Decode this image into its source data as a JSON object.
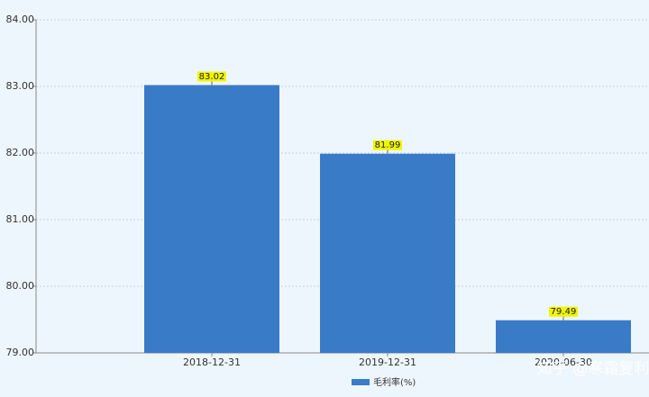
{
  "chart_data": {
    "type": "bar",
    "categories": [
      "2018-12-31",
      "2019-12-31",
      "2020-06-30"
    ],
    "series": [
      {
        "name": "毛利率(%)",
        "color": "#3a7bc8",
        "values": [
          83.02,
          81.99,
          79.49
        ]
      }
    ],
    "ylim": [
      79,
      84
    ],
    "yticks": [
      {
        "value": 79,
        "label": "79.00"
      },
      {
        "value": 80,
        "label": "80.00"
      },
      {
        "value": 81,
        "label": "81.00"
      },
      {
        "value": 82,
        "label": "82.00"
      },
      {
        "value": 83,
        "label": "83.00"
      },
      {
        "value": 84,
        "label": "84.00"
      }
    ],
    "grid": true,
    "legend": "bottom",
    "watermark": "知乎 @寒霜复利"
  }
}
